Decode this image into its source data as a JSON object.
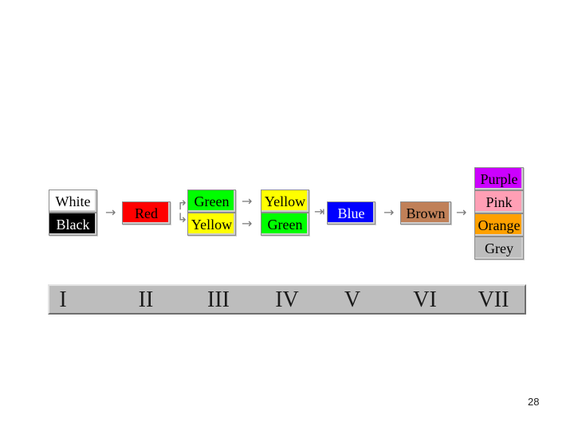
{
  "colors": {
    "white": "#ffffff",
    "black": "#000000",
    "red": "#ff0000",
    "green": "#00ff00",
    "yellow": "#ffff00",
    "blue": "#0000ff",
    "brown": "#c08058",
    "purple": "#cc00ff",
    "pink": "#ff9fb5",
    "orange": "#ffa000",
    "grey": "#bdbdbd",
    "bar": "#bdbdbd"
  },
  "groups": {
    "g1": [
      "White",
      "Black"
    ],
    "g2": [
      "Red"
    ],
    "g3": [
      "Green",
      "Yellow"
    ],
    "g4": [
      "Yellow",
      "Green"
    ],
    "g5": [
      "Blue"
    ],
    "g6": [
      "Brown"
    ],
    "g7": [
      "Purple",
      "Pink",
      "Orange",
      "Grey"
    ]
  },
  "stages": [
    "I",
    "II",
    "III",
    "IV",
    "V",
    "VI",
    "VII"
  ],
  "page_number": "28"
}
